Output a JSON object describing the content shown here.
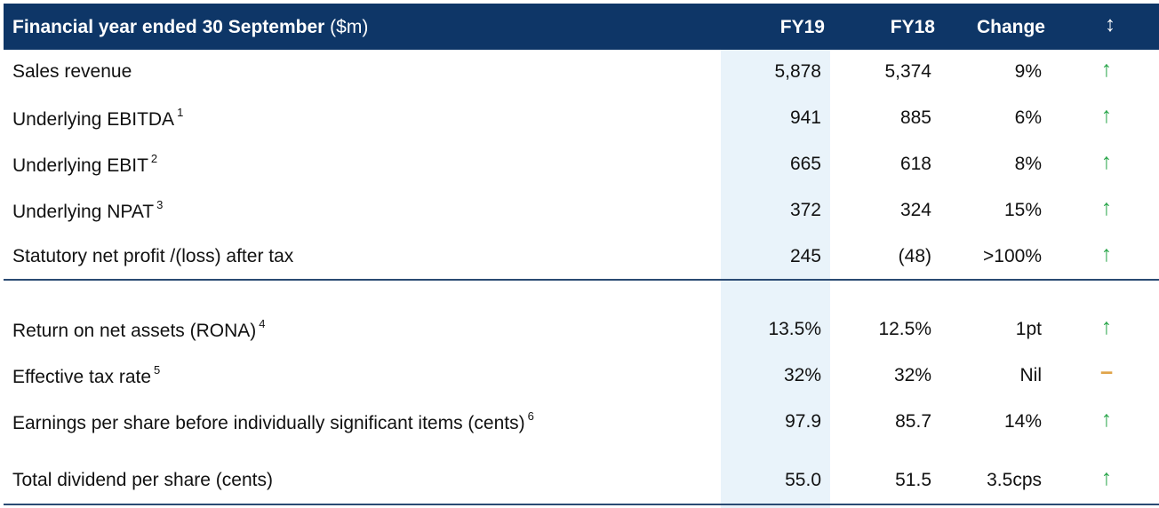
{
  "header": {
    "title_bold": "Financial year ended 30 September",
    "title_unit": "($m)",
    "col_fy19": "FY19",
    "col_fy18": "FY18",
    "col_change": "Change",
    "col_direction": "↕"
  },
  "rows": [
    {
      "label": "Sales revenue",
      "note": "",
      "fy19": "5,878",
      "fy18": "5,374",
      "change": "9%",
      "direction": "↑",
      "direction_name": "up-arrow-icon"
    },
    {
      "label": "Underlying EBITDA",
      "note": "1",
      "fy19": "941",
      "fy18": "885",
      "change": "6%",
      "direction": "↑",
      "direction_name": "up-arrow-icon"
    },
    {
      "label": "Underlying EBIT",
      "note": "2",
      "fy19": "665",
      "fy18": "618",
      "change": "8%",
      "direction": "↑",
      "direction_name": "up-arrow-icon"
    },
    {
      "label": "Underlying NPAT",
      "note": "3",
      "fy19": "372",
      "fy18": "324",
      "change": "15%",
      "direction": "↑",
      "direction_name": "up-arrow-icon"
    },
    {
      "label": "Statutory net profit /(loss) after tax",
      "note": "",
      "fy19": "245",
      "fy18": "(48)",
      "change": ">100%",
      "direction": "↑",
      "direction_name": "up-arrow-icon"
    },
    {
      "label": "Return on net assets (RONA)",
      "note": "4",
      "fy19": "13.5%",
      "fy18": "12.5%",
      "change": "1pt",
      "direction": "↑",
      "direction_name": "up-arrow-icon"
    },
    {
      "label": "Effective tax rate",
      "note": "5",
      "fy19": "32%",
      "fy18": "32%",
      "change": "Nil",
      "direction": "−",
      "direction_name": "dash-icon"
    },
    {
      "label": "Earnings per share before individually significant items (cents)",
      "note": "6",
      "fy19": "97.9",
      "fy18": "85.7",
      "change": "14%",
      "direction": "↑",
      "direction_name": "up-arrow-icon"
    },
    {
      "label": "Total dividend per share (cents)",
      "note": "",
      "fy19": "55.0",
      "fy18": "51.5",
      "change": "3.5cps",
      "direction": "↑",
      "direction_name": "up-arrow-icon"
    }
  ],
  "colors": {
    "header_bg": "#0e3667",
    "highlight_col": "#e9f3fa",
    "up_arrow": "#2fa84f",
    "flat_dash": "#e0a44a"
  }
}
